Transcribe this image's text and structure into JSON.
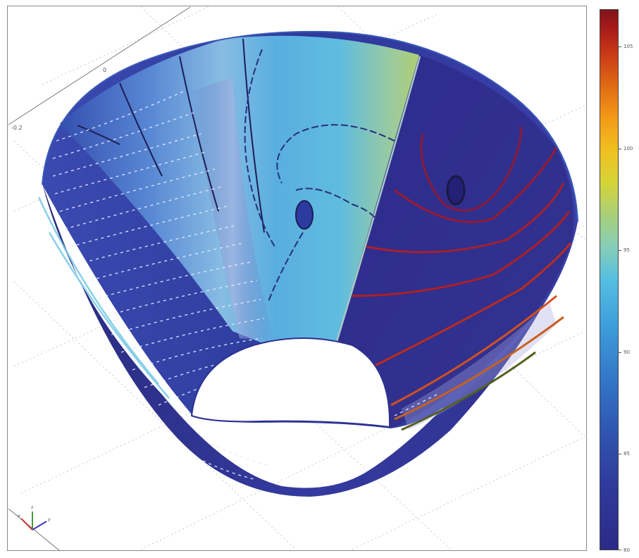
{
  "plot": {
    "axis_labels": [
      "0",
      "-0.2"
    ],
    "triad": {
      "x_label": "x",
      "y_label": "y",
      "z_label": "z"
    }
  },
  "colorbar": {
    "ticks": [
      "105",
      "100",
      "95",
      "90",
      "85",
      "80"
    ],
    "colors": {
      "low": "#2c2a86",
      "mid": "#55bfe2",
      "high": "#7f1518"
    }
  }
}
